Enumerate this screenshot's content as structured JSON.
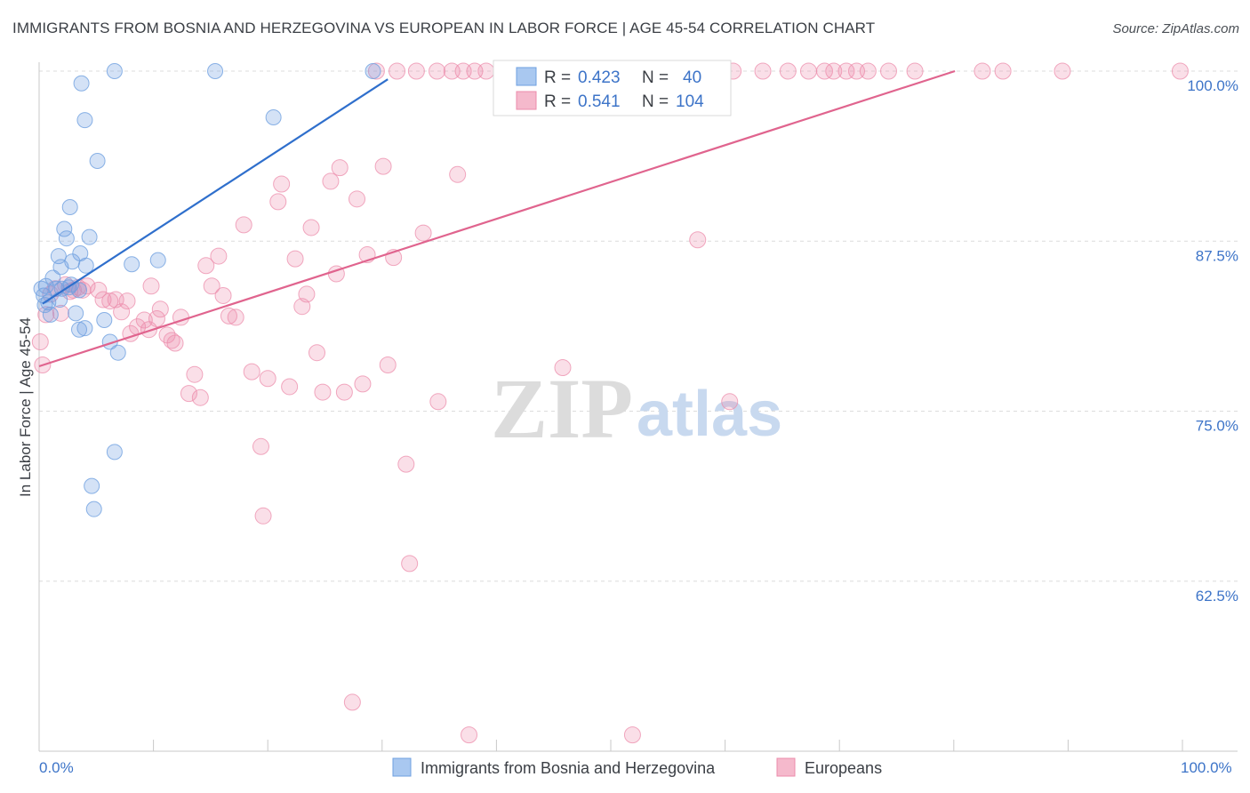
{
  "header": {
    "title": "IMMIGRANTS FROM BOSNIA AND HERZEGOVINA VS EUROPEAN IN LABOR FORCE | AGE 45-54 CORRELATION CHART",
    "source": "Source: ZipAtlas.com"
  },
  "watermark": {
    "zip": "ZIP",
    "atlas": "atlas"
  },
  "legend_box": {
    "r_label": "R =",
    "n_label": "N =",
    "rows": [
      {
        "r": "0.423",
        "n": "40",
        "color": "#a9c8f0"
      },
      {
        "r": "0.541",
        "n": "104",
        "color": "#f5b9cc"
      }
    ]
  },
  "colors": {
    "series_blue": "#6fa0e0",
    "series_pink": "#ec8cab",
    "line_blue": "#2f6fcc",
    "line_pink": "#e0648e",
    "tick_text": "#3d74c8"
  },
  "chart_data": {
    "type": "scatter",
    "xlabel": "",
    "ylabel": "In Labor Force | Age 45-54",
    "xlim": [
      0,
      100
    ],
    "ylim": [
      50,
      100
    ],
    "x_tick_labels": [
      "0.0%",
      "100.0%"
    ],
    "y_ticks": [
      62.5,
      75.0,
      87.5,
      100.0
    ],
    "y_tick_labels": [
      "62.5%",
      "75.0%",
      "87.5%",
      "100.0%"
    ],
    "grid": true,
    "legend": "top-center and bottom",
    "series": [
      {
        "name": "Immigrants from Bosnia and Herzegovina",
        "r": 0.423,
        "n": 40,
        "trend": {
          "x": [
            0.3,
            30.5
          ],
          "y": [
            82.9,
            99.4
          ]
        },
        "points": [
          [
            0.2,
            84.0
          ],
          [
            0.4,
            83.5
          ],
          [
            0.5,
            82.8
          ],
          [
            0.6,
            84.2
          ],
          [
            0.8,
            83.0
          ],
          [
            1.0,
            82.1
          ],
          [
            1.2,
            84.8
          ],
          [
            1.5,
            84.0
          ],
          [
            1.7,
            86.4
          ],
          [
            1.9,
            85.6
          ],
          [
            2.0,
            84.0
          ],
          [
            2.2,
            88.4
          ],
          [
            2.4,
            87.7
          ],
          [
            2.6,
            84.1
          ],
          [
            2.8,
            84.3
          ],
          [
            2.9,
            86.0
          ],
          [
            2.7,
            90.0
          ],
          [
            3.2,
            82.2
          ],
          [
            3.5,
            81.0
          ],
          [
            3.5,
            83.9
          ],
          [
            3.6,
            86.6
          ],
          [
            3.7,
            99.1
          ],
          [
            4.0,
            96.4
          ],
          [
            4.0,
            81.1
          ],
          [
            4.1,
            85.7
          ],
          [
            4.4,
            87.8
          ],
          [
            4.6,
            69.5
          ],
          [
            4.8,
            67.8
          ],
          [
            5.1,
            93.4
          ],
          [
            5.7,
            81.7
          ],
          [
            6.2,
            80.1
          ],
          [
            6.6,
            72.0
          ],
          [
            6.6,
            100.0
          ],
          [
            6.9,
            79.3
          ],
          [
            8.1,
            85.8
          ],
          [
            10.4,
            86.1
          ],
          [
            15.4,
            100.0
          ],
          [
            20.5,
            96.6
          ],
          [
            29.2,
            100.0
          ],
          [
            1.8,
            83.2
          ]
        ]
      },
      {
        "name": "Europeans",
        "r": 0.541,
        "n": 104,
        "trend": {
          "x": [
            0.0,
            80.1
          ],
          "y": [
            78.3,
            100.0
          ]
        },
        "points": [
          [
            0.1,
            80.1
          ],
          [
            0.3,
            78.4
          ],
          [
            0.6,
            82.1
          ],
          [
            1.0,
            83.6
          ],
          [
            1.4,
            84.0
          ],
          [
            1.9,
            82.2
          ],
          [
            2.3,
            84.3
          ],
          [
            2.7,
            83.8
          ],
          [
            3.0,
            83.9
          ],
          [
            3.4,
            84.1
          ],
          [
            3.8,
            83.9
          ],
          [
            4.2,
            84.2
          ],
          [
            5.2,
            83.9
          ],
          [
            5.6,
            83.2
          ],
          [
            6.2,
            83.1
          ],
          [
            6.7,
            83.2
          ],
          [
            7.2,
            82.3
          ],
          [
            7.7,
            83.1
          ],
          [
            8.0,
            80.7
          ],
          [
            8.6,
            81.2
          ],
          [
            9.2,
            81.7
          ],
          [
            9.6,
            81.0
          ],
          [
            9.8,
            84.2
          ],
          [
            10.3,
            81.8
          ],
          [
            10.6,
            82.5
          ],
          [
            11.2,
            80.6
          ],
          [
            11.6,
            80.2
          ],
          [
            11.9,
            80.0
          ],
          [
            12.4,
            81.9
          ],
          [
            13.1,
            76.3
          ],
          [
            13.6,
            77.7
          ],
          [
            14.1,
            76.0
          ],
          [
            14.6,
            85.7
          ],
          [
            15.1,
            84.2
          ],
          [
            15.7,
            86.4
          ],
          [
            16.1,
            83.5
          ],
          [
            16.6,
            82.0
          ],
          [
            17.2,
            81.9
          ],
          [
            17.9,
            88.7
          ],
          [
            18.6,
            77.9
          ],
          [
            19.4,
            72.4
          ],
          [
            19.6,
            67.3
          ],
          [
            20.0,
            77.4
          ],
          [
            20.9,
            90.4
          ],
          [
            21.2,
            91.7
          ],
          [
            21.9,
            76.8
          ],
          [
            22.4,
            86.2
          ],
          [
            23.0,
            82.7
          ],
          [
            23.4,
            83.6
          ],
          [
            23.8,
            88.5
          ],
          [
            24.3,
            79.3
          ],
          [
            24.8,
            76.4
          ],
          [
            25.5,
            91.9
          ],
          [
            26.0,
            85.1
          ],
          [
            26.3,
            92.9
          ],
          [
            26.7,
            76.4
          ],
          [
            27.8,
            90.6
          ],
          [
            28.3,
            77.0
          ],
          [
            28.7,
            86.5
          ],
          [
            29.5,
            100.0
          ],
          [
            30.1,
            93.0
          ],
          [
            30.5,
            78.4
          ],
          [
            31.0,
            86.3
          ],
          [
            31.3,
            100.0
          ],
          [
            32.1,
            71.1
          ],
          [
            32.4,
            63.8
          ],
          [
            33.0,
            100.0
          ],
          [
            33.6,
            88.1
          ],
          [
            34.8,
            100.0
          ],
          [
            34.9,
            75.7
          ],
          [
            36.1,
            100.0
          ],
          [
            36.6,
            92.4
          ],
          [
            37.1,
            100.0
          ],
          [
            38.1,
            100.0
          ],
          [
            39.1,
            100.0
          ],
          [
            40.5,
            100.0
          ],
          [
            41.3,
            100.0
          ],
          [
            43.5,
            100.0
          ],
          [
            45.2,
            100.0
          ],
          [
            45.6,
            100.0
          ],
          [
            47.1,
            100.0
          ],
          [
            48.3,
            100.0
          ],
          [
            50.0,
            100.0
          ],
          [
            51.6,
            100.0
          ],
          [
            53.3,
            100.0
          ],
          [
            54.3,
            100.0
          ],
          [
            55.8,
            100.0
          ],
          [
            56.7,
            100.0
          ],
          [
            57.9,
            100.0
          ],
          [
            60.7,
            100.0
          ],
          [
            63.3,
            100.0
          ],
          [
            65.5,
            100.0
          ],
          [
            67.3,
            100.0
          ],
          [
            68.7,
            100.0
          ],
          [
            69.5,
            100.0
          ],
          [
            70.6,
            100.0
          ],
          [
            71.5,
            100.0
          ],
          [
            72.5,
            100.0
          ],
          [
            74.3,
            100.0
          ],
          [
            76.6,
            100.0
          ],
          [
            82.5,
            100.0
          ],
          [
            84.3,
            100.0
          ],
          [
            89.5,
            100.0
          ],
          [
            99.8,
            100.0
          ]
        ]
      }
    ],
    "extra_points_europeans": [
      [
        27.4,
        53.6
      ],
      [
        37.6,
        51.2
      ],
      [
        51.9,
        51.2
      ],
      [
        45.8,
        78.2
      ],
      [
        57.6,
        87.6
      ],
      [
        60.4,
        75.7
      ]
    ]
  },
  "bottom_legend": [
    {
      "label": "Immigrants from Bosnia and Herzegovina",
      "color": "#a9c8f0"
    },
    {
      "label": "Europeans",
      "color": "#f5b9cc"
    }
  ]
}
